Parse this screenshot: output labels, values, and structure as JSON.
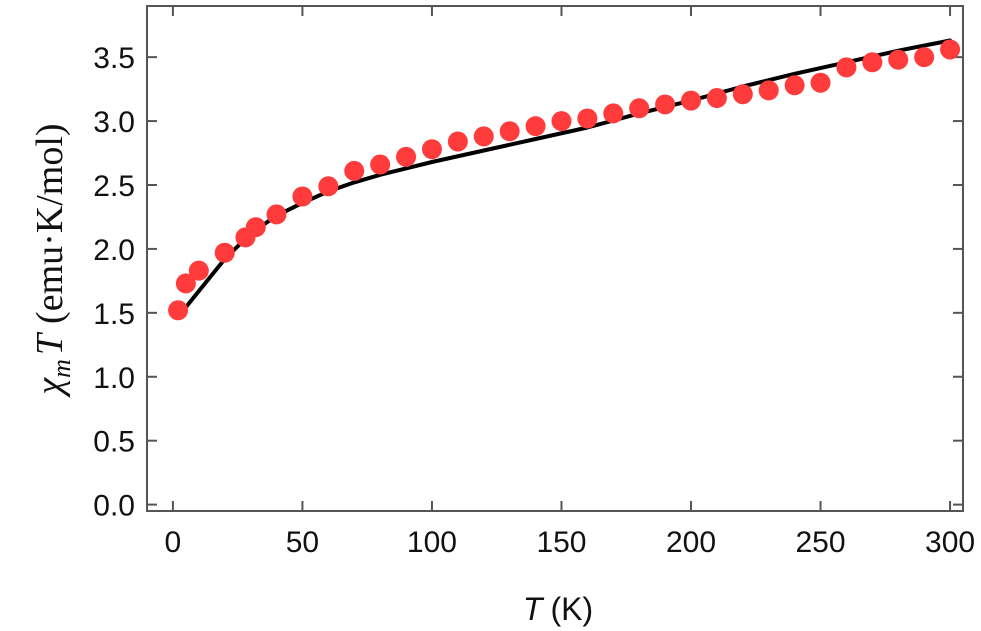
{
  "chart_data": {
    "type": "scatter",
    "title": "",
    "xlabel": {
      "symbol": "T",
      "unit": "(K)"
    },
    "ylabel": {
      "chi": "χ",
      "sub": "m",
      "symbol": "T",
      "unit": "(emu·K/mol)"
    },
    "xlim": [
      -10,
      305
    ],
    "ylim": [
      -0.05,
      3.9
    ],
    "x_ticks": [
      0,
      50,
      100,
      150,
      200,
      250,
      300
    ],
    "x_tick_labels": [
      "0",
      "50",
      "100",
      "150",
      "200",
      "250",
      "300"
    ],
    "y_ticks": [
      0.0,
      0.5,
      1.0,
      1.5,
      2.0,
      2.5,
      3.0,
      3.5
    ],
    "y_tick_labels": [
      "0.0",
      "0.5",
      "1.0",
      "1.5",
      "2.0",
      "2.5",
      "3.0",
      "3.5"
    ],
    "grid": false,
    "series": [
      {
        "kind": "markers",
        "color": "#ff3b3b",
        "points": [
          [
            2,
            1.52
          ],
          [
            5,
            1.73
          ],
          [
            10,
            1.83
          ],
          [
            20,
            1.97
          ],
          [
            28,
            2.09
          ],
          [
            32,
            2.17
          ],
          [
            40,
            2.27
          ],
          [
            50,
            2.41
          ],
          [
            60,
            2.49
          ],
          [
            70,
            2.61
          ],
          [
            80,
            2.66
          ],
          [
            90,
            2.72
          ],
          [
            100,
            2.78
          ],
          [
            110,
            2.84
          ],
          [
            120,
            2.88
          ],
          [
            130,
            2.92
          ],
          [
            140,
            2.96
          ],
          [
            150,
            3.0
          ],
          [
            160,
            3.02
          ],
          [
            170,
            3.06
          ],
          [
            180,
            3.1
          ],
          [
            190,
            3.13
          ],
          [
            200,
            3.16
          ],
          [
            210,
            3.18
          ],
          [
            220,
            3.21
          ],
          [
            230,
            3.24
          ],
          [
            240,
            3.28
          ],
          [
            250,
            3.3
          ],
          [
            260,
            3.42
          ],
          [
            270,
            3.46
          ],
          [
            280,
            3.48
          ],
          [
            290,
            3.5
          ],
          [
            300,
            3.56
          ]
        ]
      },
      {
        "kind": "line",
        "color": "#000000",
        "points": [
          [
            2,
            1.47
          ],
          [
            10,
            1.67
          ],
          [
            20,
            1.92
          ],
          [
            30,
            2.12
          ],
          [
            40,
            2.26
          ],
          [
            50,
            2.36
          ],
          [
            60,
            2.45
          ],
          [
            70,
            2.52
          ],
          [
            80,
            2.58
          ],
          [
            90,
            2.63
          ],
          [
            100,
            2.68
          ],
          [
            120,
            2.77
          ],
          [
            140,
            2.86
          ],
          [
            160,
            2.95
          ],
          [
            180,
            3.06
          ],
          [
            200,
            3.16
          ],
          [
            220,
            3.27
          ],
          [
            240,
            3.37
          ],
          [
            260,
            3.46
          ],
          [
            280,
            3.55
          ],
          [
            300,
            3.63
          ]
        ]
      }
    ]
  }
}
